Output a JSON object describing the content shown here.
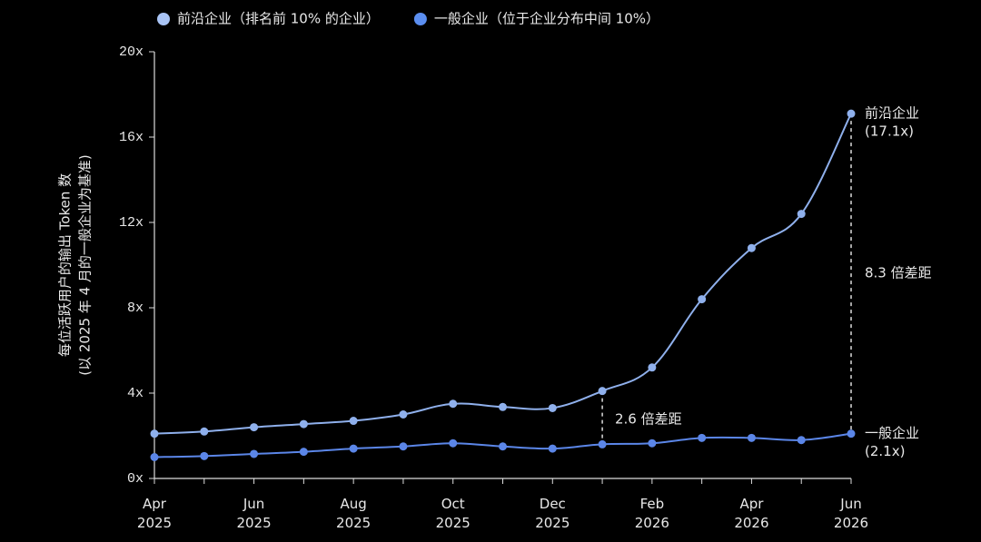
{
  "chart_data": {
    "type": "line",
    "ylabel": [
      "每位活跃用户的输出 Token 数",
      "(以 2025 年 4 月的一般企业为基准)"
    ],
    "categories": [
      "Apr 2025",
      null,
      "Jun 2025",
      null,
      "Aug 2025",
      null,
      "Oct 2025",
      null,
      "Dec 2025",
      null,
      "Feb 2026",
      null,
      "Apr 2026",
      null,
      "Jun 2026"
    ],
    "series": [
      {
        "name": "前沿企业（排名前 10% 的企业）",
        "color": "#8fb0ec",
        "legend_color": "#a9c4f5",
        "values": [
          2.1,
          2.2,
          2.4,
          2.55,
          2.7,
          3.0,
          3.5,
          3.35,
          3.3,
          4.1,
          5.2,
          8.4,
          10.8,
          12.4,
          17.1
        ],
        "end_labels": [
          "前沿企业",
          "(17.1x)"
        ]
      },
      {
        "name": "一般企业（位于企业分布中间 10%）",
        "color": "#5b86e8",
        "legend_color": "#5b8ef0",
        "values": [
          1.0,
          1.05,
          1.15,
          1.25,
          1.4,
          1.5,
          1.65,
          1.5,
          1.4,
          1.6,
          1.65,
          1.9,
          1.9,
          1.8,
          2.1
        ],
        "end_labels": [
          "一般企业",
          "(2.1x)"
        ]
      }
    ],
    "annotations": [
      "2.6 倍差距",
      "8.3 倍差距"
    ],
    "ylim": [
      0,
      20
    ],
    "yticks": [
      {
        "value": 0,
        "label": "0x"
      },
      {
        "value": 4,
        "label": "4x"
      },
      {
        "value": 8,
        "label": "8x"
      },
      {
        "value": 12,
        "label": "12x"
      },
      {
        "value": 16,
        "label": "16x"
      },
      {
        "value": 20,
        "label": "20x"
      }
    ]
  }
}
